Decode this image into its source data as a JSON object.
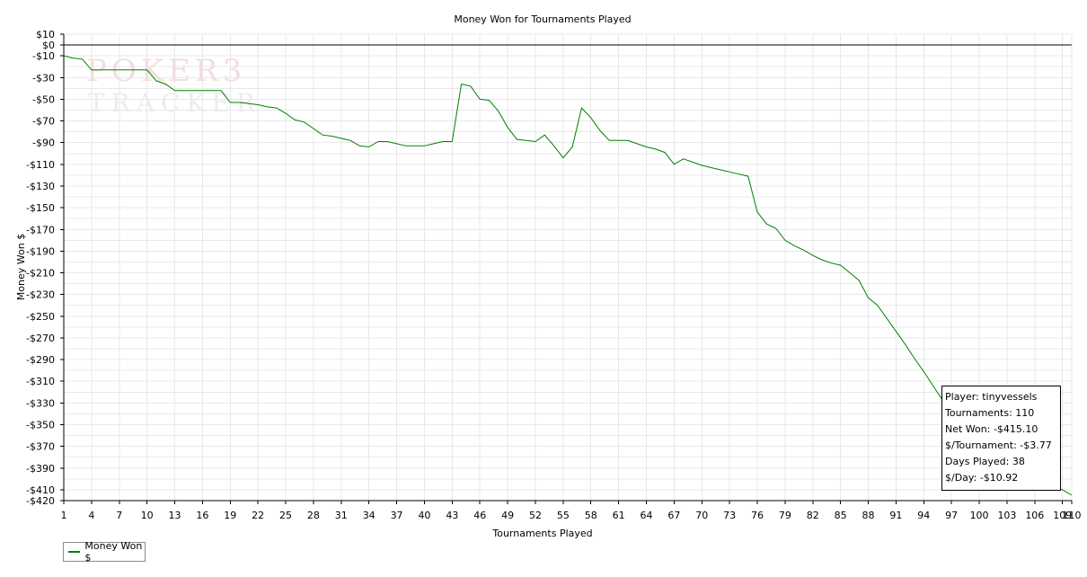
{
  "chart_data": {
    "type": "line",
    "title": "Money Won for Tournaments Played",
    "xlabel": "Tournaments Played",
    "ylabel": "Money Won $",
    "xlim": [
      1,
      110
    ],
    "ylim": [
      -420,
      10
    ],
    "x_ticks": [
      1,
      4,
      7,
      10,
      13,
      16,
      19,
      22,
      25,
      28,
      31,
      34,
      37,
      40,
      43,
      46,
      49,
      52,
      55,
      58,
      61,
      64,
      67,
      70,
      73,
      76,
      79,
      82,
      85,
      88,
      91,
      94,
      97,
      100,
      103,
      106,
      109,
      110
    ],
    "y_ticks": [
      10,
      0,
      -10,
      -30,
      -50,
      -70,
      -90,
      -110,
      -130,
      -150,
      -170,
      -190,
      -210,
      -230,
      -250,
      -270,
      -290,
      -310,
      -330,
      -350,
      -370,
      -390,
      -410,
      -420
    ],
    "y_tick_labels": [
      "$10",
      "$0",
      "-$10",
      "-$30",
      "-$50",
      "-$70",
      "-$90",
      "-$110",
      "-$130",
      "-$150",
      "-$170",
      "-$190",
      "-$210",
      "-$230",
      "-$250",
      "-$270",
      "-$290",
      "-$310",
      "-$330",
      "-$350",
      "-$370",
      "-$390",
      "-$410",
      "-$420"
    ],
    "grid": true,
    "legend": "bottom-left",
    "series": [
      {
        "name": "Money Won $",
        "color": "#008000",
        "points": [
          [
            1,
            -10
          ],
          [
            2,
            -12
          ],
          [
            3,
            -13
          ],
          [
            4,
            -23
          ],
          [
            5,
            -23
          ],
          [
            6,
            -23
          ],
          [
            7,
            -23
          ],
          [
            8,
            -23
          ],
          [
            9,
            -23
          ],
          [
            10,
            -23
          ],
          [
            11,
            -33
          ],
          [
            12,
            -36
          ],
          [
            13,
            -42
          ],
          [
            14,
            -42
          ],
          [
            15,
            -42
          ],
          [
            16,
            -42
          ],
          [
            17,
            -42
          ],
          [
            18,
            -42
          ],
          [
            19,
            -53
          ],
          [
            20,
            -53
          ],
          [
            21,
            -54
          ],
          [
            22,
            -55
          ],
          [
            23,
            -57
          ],
          [
            24,
            -58
          ],
          [
            25,
            -63
          ],
          [
            26,
            -69
          ],
          [
            27,
            -71
          ],
          [
            28,
            -77
          ],
          [
            29,
            -83
          ],
          [
            30,
            -84
          ],
          [
            31,
            -86
          ],
          [
            32,
            -88
          ],
          [
            33,
            -93
          ],
          [
            34,
            -94
          ],
          [
            35,
            -89
          ],
          [
            36,
            -89
          ],
          [
            37,
            -91
          ],
          [
            38,
            -93
          ],
          [
            39,
            -93
          ],
          [
            40,
            -93
          ],
          [
            41,
            -91
          ],
          [
            42,
            -89
          ],
          [
            43,
            -89
          ],
          [
            44,
            -36
          ],
          [
            45,
            -38
          ],
          [
            46,
            -50
          ],
          [
            47,
            -51
          ],
          [
            48,
            -61
          ],
          [
            49,
            -76
          ],
          [
            50,
            -87
          ],
          [
            51,
            -88
          ],
          [
            52,
            -89
          ],
          [
            53,
            -83
          ],
          [
            54,
            -93
          ],
          [
            55,
            -104
          ],
          [
            56,
            -94
          ],
          [
            57,
            -58
          ],
          [
            58,
            -67
          ],
          [
            59,
            -79
          ],
          [
            60,
            -88
          ],
          [
            61,
            -88
          ],
          [
            62,
            -88
          ],
          [
            63,
            -91
          ],
          [
            64,
            -94
          ],
          [
            65,
            -96
          ],
          [
            66,
            -99
          ],
          [
            67,
            -110
          ],
          [
            68,
            -105
          ],
          [
            69,
            -108
          ],
          [
            70,
            -111
          ],
          [
            71,
            -113
          ],
          [
            72,
            -115
          ],
          [
            73,
            -117
          ],
          [
            74,
            -119
          ],
          [
            75,
            -121
          ],
          [
            76,
            -154
          ],
          [
            77,
            -165
          ],
          [
            78,
            -169
          ],
          [
            79,
            -180
          ],
          [
            80,
            -185
          ],
          [
            81,
            -189
          ],
          [
            82,
            -194
          ],
          [
            83,
            -198
          ],
          [
            84,
            -201
          ],
          [
            85,
            -203
          ],
          [
            86,
            -210
          ],
          [
            87,
            -217
          ],
          [
            88,
            -233
          ],
          [
            89,
            -240
          ],
          [
            90,
            -252
          ],
          [
            91,
            -264
          ],
          [
            92,
            -276
          ],
          [
            93,
            -289
          ],
          [
            94,
            -301
          ],
          [
            95,
            -314
          ],
          [
            96,
            -327
          ],
          [
            97,
            -340
          ],
          [
            98,
            -351
          ],
          [
            99,
            -360
          ],
          [
            100,
            -369
          ],
          [
            101,
            -378
          ],
          [
            102,
            -385
          ],
          [
            103,
            -390
          ],
          [
            104,
            -395
          ],
          [
            105,
            -399
          ],
          [
            106,
            -402
          ],
          [
            107,
            -405
          ],
          [
            108,
            -407
          ],
          [
            109,
            -410
          ],
          [
            110,
            -415
          ]
        ]
      }
    ]
  },
  "info_box": {
    "player": "Player: tinyvessels",
    "tournaments": "Tournaments: 110",
    "net_won": "Net Won: -$415.10",
    "per_tournament": "$/Tournament: -$3.77",
    "days_played": "Days Played: 38",
    "per_day": "$/Day: -$10.92"
  },
  "watermark": {
    "line1": "POKER3",
    "line2": "TRACKER"
  }
}
